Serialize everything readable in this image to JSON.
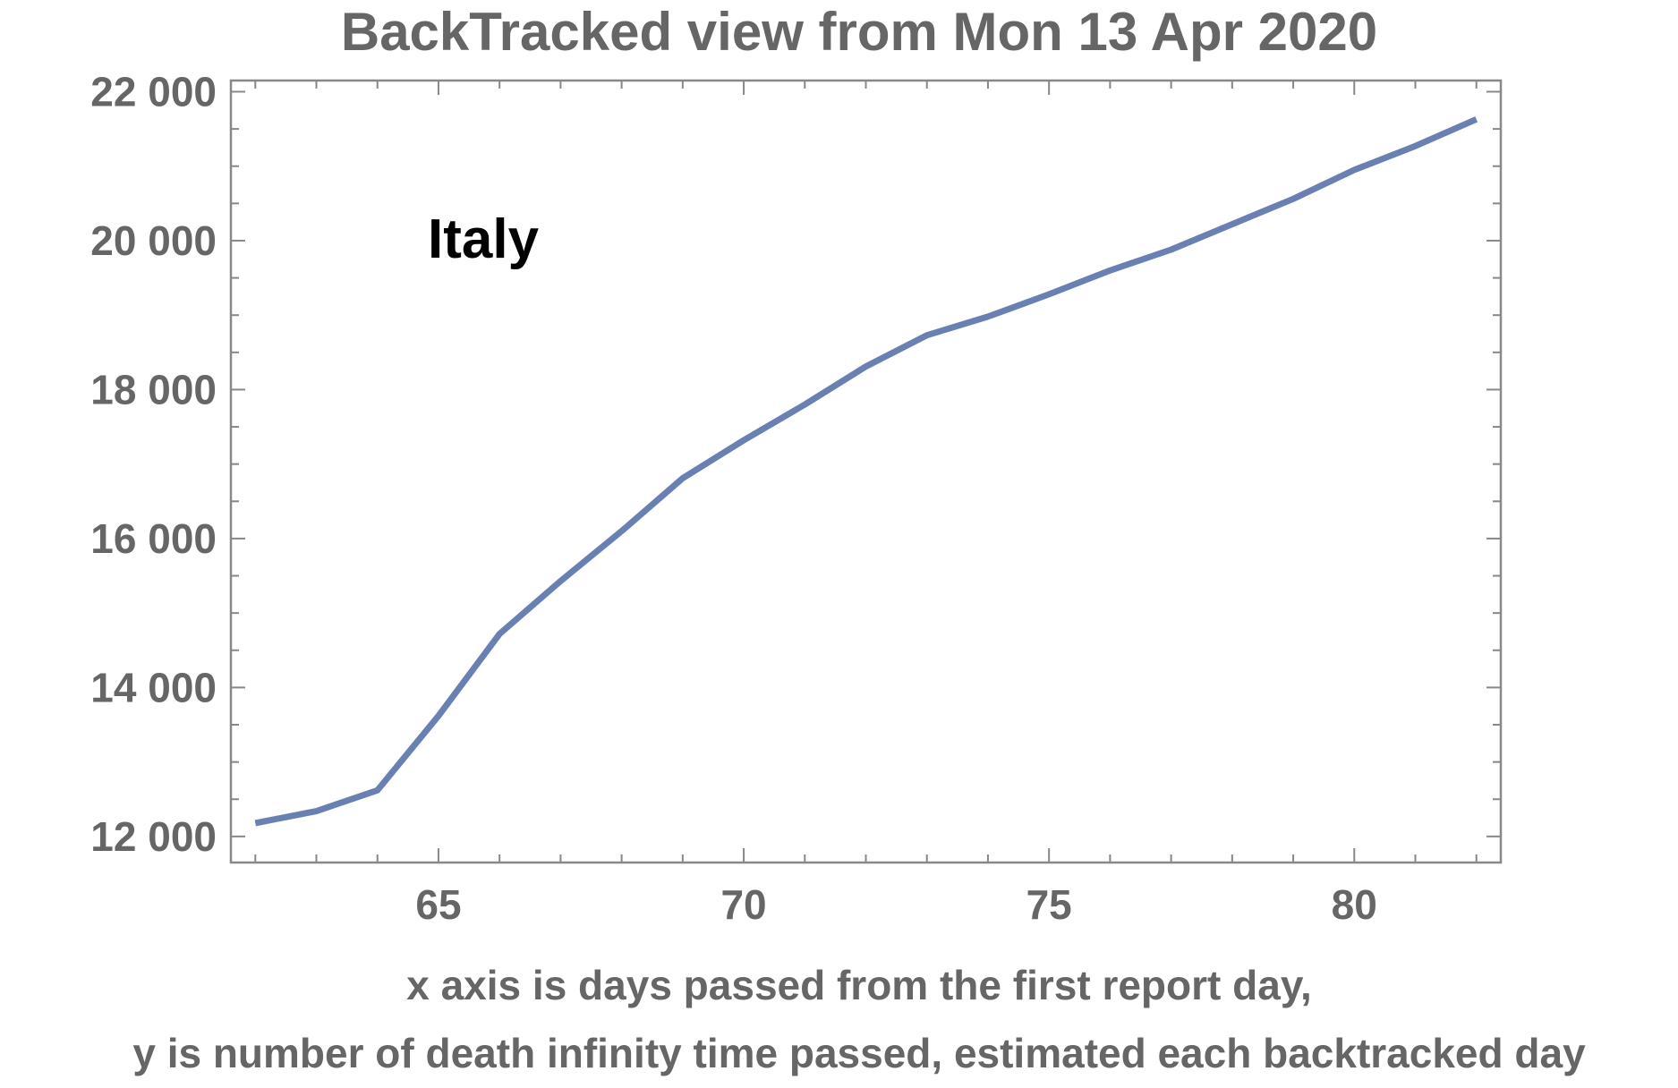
{
  "chart_data": {
    "type": "line",
    "title": "BackTracked view from Mon 13 Apr 2020",
    "xlabel_line1": "x axis is days passed from the first report day,",
    "xlabel_line2": "y is number of death infinity time passed, estimated each backtracked day",
    "annotation": "Italy",
    "xlim": [
      61.6,
      82.4
    ],
    "ylim": [
      11650,
      22150
    ],
    "x_ticks": [
      65,
      70,
      75,
      80
    ],
    "y_ticks": [
      12000,
      14000,
      16000,
      18000,
      20000,
      22000
    ],
    "y_tick_labels": [
      "12 000",
      "14 000",
      "16 000",
      "18 000",
      "20 000",
      "22 000"
    ],
    "grid": false,
    "line_color": "#6a80b3",
    "x": [
      62,
      63,
      64,
      65,
      66,
      67,
      68,
      69,
      70,
      71,
      72,
      73,
      74,
      75,
      76,
      77,
      78,
      79,
      80,
      81,
      82
    ],
    "y": [
      12180,
      12340,
      12620,
      13620,
      14720,
      15430,
      16100,
      16810,
      17320,
      17800,
      18310,
      18730,
      18980,
      19280,
      19600,
      19880,
      20220,
      20560,
      20950,
      21270,
      21630
    ]
  }
}
